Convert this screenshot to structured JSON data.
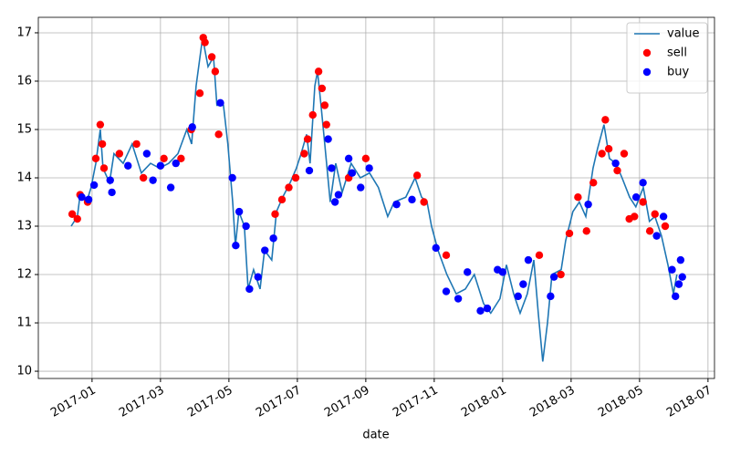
{
  "chart_data": {
    "type": "line",
    "xlabel": "date",
    "xlim": [
      -1.57,
      18.19
    ],
    "xticks": [
      {
        "value": 0,
        "label": "2017-01"
      },
      {
        "value": 2,
        "label": "2017-03"
      },
      {
        "value": 4,
        "label": "2017-05"
      },
      {
        "value": 6,
        "label": "2017-07"
      },
      {
        "value": 8,
        "label": "2017-09"
      },
      {
        "value": 10,
        "label": "2017-11"
      },
      {
        "value": 12,
        "label": "2018-01"
      },
      {
        "value": 14,
        "label": "2018-03"
      },
      {
        "value": 16,
        "label": "2018-05"
      },
      {
        "value": 18,
        "label": "2018-07"
      }
    ],
    "ylim": [
      9.85,
      17.32
    ],
    "yticks": [
      10,
      11,
      12,
      13,
      14,
      15,
      16,
      17
    ],
    "grid": true,
    "legend": "upper right",
    "series": [
      {
        "name": "value",
        "type": "line",
        "color": "#1f77b4",
        "x": [
          -0.61,
          -0.43,
          -0.35,
          -0.16,
          -0.03,
          0.11,
          0.24,
          0.32,
          0.51,
          0.64,
          0.91,
          1.17,
          1.44,
          1.71,
          1.97,
          2.24,
          2.51,
          2.77,
          2.91,
          3.04,
          3.23,
          3.39,
          3.55,
          3.65,
          3.84,
          3.97,
          4.11,
          4.19,
          4.29,
          4.45,
          4.56,
          4.72,
          4.91,
          5.04,
          5.25,
          5.39,
          5.57,
          5.79,
          5.97,
          6.11,
          6.27,
          6.37,
          6.51,
          6.59,
          6.69,
          6.8,
          6.96,
          7.12,
          7.31,
          7.57,
          7.84,
          8.11,
          8.37,
          8.64,
          8.83,
          9.17,
          9.44,
          9.63,
          9.79,
          9.92,
          10.11,
          10.37,
          10.64,
          10.91,
          11.17,
          11.44,
          11.65,
          11.92,
          12.11,
          12.32,
          12.51,
          12.72,
          12.91,
          13.04,
          13.17,
          13.31,
          13.44,
          13.71,
          13.84,
          14.05,
          14.24,
          14.43,
          14.64,
          14.77,
          14.96,
          15.12,
          15.31,
          15.49,
          15.71,
          15.89,
          16.11,
          16.29,
          16.45,
          16.64,
          16.83,
          16.99,
          17.09
        ],
        "values": [
          13.0,
          13.2,
          13.65,
          13.5,
          13.8,
          14.3,
          15.0,
          14.2,
          13.9,
          14.5,
          14.3,
          14.7,
          14.1,
          14.3,
          14.2,
          14.3,
          14.5,
          15.0,
          14.7,
          15.9,
          16.9,
          16.3,
          16.5,
          15.5,
          15.5,
          14.7,
          13.5,
          12.6,
          13.3,
          13.0,
          11.7,
          12.1,
          11.7,
          12.5,
          12.3,
          13.3,
          13.6,
          13.9,
          14.2,
          14.5,
          14.9,
          14.3,
          15.9,
          16.2,
          15.5,
          14.7,
          13.5,
          14.3,
          13.7,
          14.3,
          14.0,
          14.1,
          13.8,
          13.2,
          13.5,
          13.6,
          14.0,
          13.6,
          13.5,
          13.0,
          12.5,
          12.0,
          11.6,
          11.7,
          12.0,
          11.4,
          11.2,
          11.5,
          12.2,
          11.6,
          11.2,
          11.6,
          12.3,
          11.2,
          10.2,
          11.0,
          12.0,
          12.1,
          12.7,
          13.3,
          13.5,
          13.2,
          14.2,
          14.6,
          15.1,
          14.4,
          14.3,
          14.0,
          13.6,
          13.4,
          13.8,
          13.1,
          13.2,
          12.8,
          12.2,
          11.6,
          12.0
        ]
      },
      {
        "name": "sell",
        "type": "scatter",
        "color": "red",
        "x": [
          -0.58,
          -0.43,
          -0.35,
          -0.13,
          0.11,
          0.24,
          0.3,
          0.35,
          0.8,
          1.3,
          1.5,
          2.1,
          2.6,
          2.9,
          3.15,
          3.25,
          3.3,
          3.5,
          3.6,
          3.7,
          5.35,
          5.55,
          5.75,
          5.95,
          6.2,
          6.3,
          6.45,
          6.62,
          6.72,
          6.8,
          6.85,
          7.5,
          8.0,
          9.5,
          9.7,
          10.35,
          13.07,
          13.7,
          13.95,
          14.2,
          14.45,
          14.65,
          14.9,
          15.0,
          15.1,
          15.35,
          15.55,
          15.7,
          15.85,
          16.1,
          16.3,
          16.45,
          16.75
        ],
        "values": [
          13.25,
          13.15,
          13.65,
          13.5,
          14.4,
          15.1,
          14.7,
          14.2,
          14.5,
          14.7,
          14.0,
          14.4,
          14.4,
          15.0,
          15.75,
          16.9,
          16.8,
          16.5,
          16.2,
          14.9,
          13.25,
          13.55,
          13.8,
          14.0,
          14.5,
          14.8,
          15.3,
          16.2,
          15.85,
          15.5,
          15.1,
          14.0,
          14.4,
          14.05,
          13.5,
          12.4,
          12.4,
          12.0,
          12.85,
          13.6,
          12.9,
          13.9,
          14.5,
          15.2,
          14.6,
          14.15,
          14.5,
          13.15,
          13.2,
          13.5,
          12.9,
          13.25,
          13.0
        ]
      },
      {
        "name": "buy",
        "type": "scatter",
        "color": "blue",
        "x": [
          -0.3,
          -0.1,
          0.06,
          0.53,
          0.58,
          1.05,
          1.6,
          1.78,
          2.0,
          2.3,
          2.45,
          2.93,
          3.75,
          4.1,
          4.2,
          4.3,
          4.5,
          4.6,
          4.85,
          5.05,
          5.3,
          6.35,
          6.9,
          7.0,
          7.1,
          7.2,
          7.5,
          7.6,
          7.85,
          8.1,
          8.9,
          9.35,
          10.05,
          10.35,
          10.7,
          10.97,
          11.35,
          11.55,
          11.85,
          12.0,
          12.45,
          12.6,
          12.75,
          13.4,
          13.5,
          14.5,
          15.3,
          15.9,
          16.1,
          16.5,
          16.7,
          16.95,
          17.05,
          17.15,
          17.2,
          17.25
        ],
        "values": [
          13.6,
          13.55,
          13.85,
          13.95,
          13.7,
          14.25,
          14.5,
          13.95,
          14.25,
          13.8,
          14.3,
          15.05,
          15.55,
          14.0,
          12.6,
          13.3,
          13.0,
          11.7,
          11.95,
          12.5,
          12.75,
          14.15,
          14.8,
          14.2,
          13.5,
          13.65,
          14.4,
          14.1,
          13.8,
          14.2,
          13.45,
          13.55,
          12.55,
          11.65,
          11.5,
          12.05,
          11.25,
          11.3,
          12.1,
          12.05,
          11.55,
          11.8,
          12.3,
          11.55,
          11.95,
          13.45,
          14.3,
          13.6,
          13.9,
          12.8,
          13.2,
          12.1,
          11.55,
          11.8,
          12.3,
          11.95
        ]
      }
    ]
  }
}
